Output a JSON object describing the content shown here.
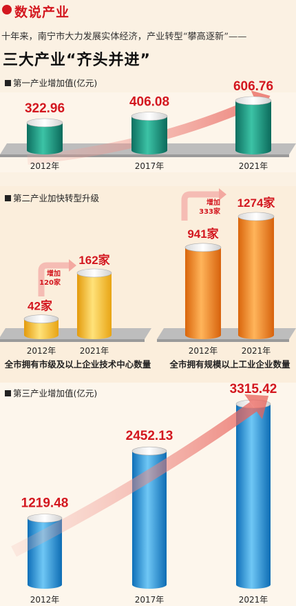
{
  "brand": {
    "title": "数说产业"
  },
  "lead": "十年来，南宁市大力发展实体经济，产业转型“攀高逐新”——",
  "headline": "三大产业“齐头并进”",
  "sections": {
    "primary": {
      "title": "第一产业增加值(亿元)"
    },
    "secondary": {
      "title": "第二产业加快转型升级"
    },
    "tertiary": {
      "title": "第三产业增加值(亿元)"
    }
  },
  "chart_data": [
    {
      "type": "bar",
      "title": "第一产业增加值(亿元)",
      "categories": [
        "2012年",
        "2017年",
        "2021年"
      ],
      "values": [
        322.96,
        406.08,
        606.76
      ],
      "value_labels": [
        "322.96",
        "406.08",
        "606.76"
      ],
      "colors": {
        "bar": "#1f9e85",
        "label": "#d3171f"
      }
    },
    {
      "type": "bar",
      "title": "全市拥有市级及以上企业技术中心数量",
      "categories": [
        "2012年",
        "2021年"
      ],
      "values": [
        42,
        162
      ],
      "value_labels": [
        "42家",
        "162家"
      ],
      "increase_label": [
        "增加",
        "120家"
      ],
      "colors": {
        "bar": "#f2b81b",
        "label": "#d3171f"
      }
    },
    {
      "type": "bar",
      "title": "全市拥有规模以上工业企业数量",
      "categories": [
        "2012年",
        "2021年"
      ],
      "values": [
        941,
        1274
      ],
      "value_labels": [
        "941家",
        "1274家"
      ],
      "increase_label": [
        "增加",
        "333家"
      ],
      "colors": {
        "bar": "#f08a1c",
        "label": "#d3171f"
      }
    },
    {
      "type": "bar",
      "title": "第三产业增加值(亿元)",
      "categories": [
        "2012年",
        "2017年",
        "2021年"
      ],
      "values": [
        1219.48,
        2452.13,
        3315.42
      ],
      "value_labels": [
        "1219.48",
        "2452.13",
        "3315.42"
      ],
      "colors": {
        "bar": "#2596dc",
        "label": "#d3171f"
      }
    }
  ]
}
